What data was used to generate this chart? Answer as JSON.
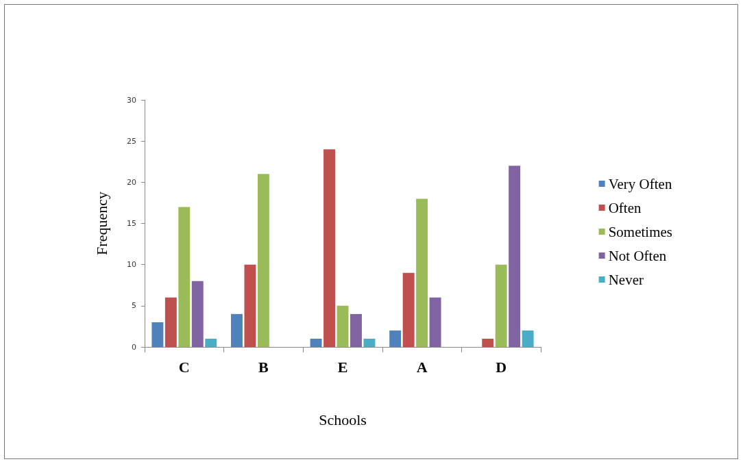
{
  "chart_data": {
    "type": "bar",
    "xlabel": "Schools",
    "ylabel": "Frequency",
    "categories": [
      "C",
      "B",
      "E",
      "A",
      "D"
    ],
    "series": [
      {
        "name": "Very Often",
        "color": "#4f81bd",
        "values": [
          3,
          4,
          1,
          2,
          null
        ]
      },
      {
        "name": "Often",
        "color": "#c0504d",
        "values": [
          6,
          10,
          24,
          9,
          1
        ]
      },
      {
        "name": "Sometimes",
        "color": "#9bbb59",
        "values": [
          17,
          21,
          5,
          18,
          10
        ]
      },
      {
        "name": "Not Often",
        "color": "#8064a2",
        "values": [
          8,
          null,
          4,
          6,
          22
        ]
      },
      {
        "name": "Never",
        "color": "#4bacc6",
        "values": [
          1,
          null,
          1,
          null,
          2
        ]
      }
    ],
    "ylim": [
      0,
      30
    ],
    "yticks": [
      0,
      5,
      10,
      15,
      20,
      25,
      30
    ],
    "grid": false,
    "legend": "right"
  }
}
